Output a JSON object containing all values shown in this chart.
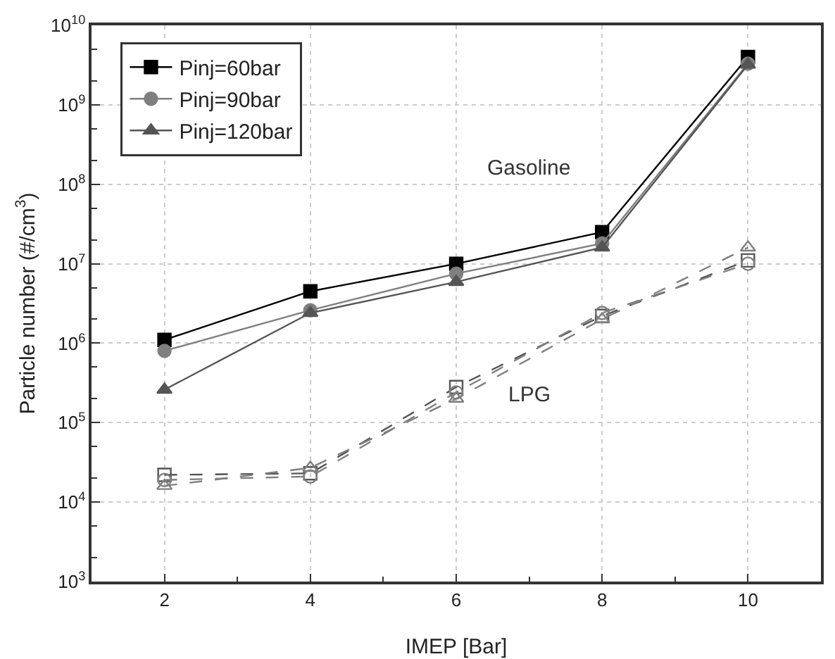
{
  "chart_data": {
    "type": "line",
    "xlabel": "IMEP [Bar]",
    "ylabel": "Particle number (#/cm$^{3}$)",
    "log": "y",
    "grid": true,
    "legend": "top left",
    "x": [
      2,
      4,
      6,
      8,
      10
    ],
    "xlim": [
      1,
      11
    ],
    "xticks": [
      2,
      4,
      6,
      8,
      10
    ],
    "ylim": [
      1000,
      10000000000
    ],
    "yticks": [
      {
        "value": 1000,
        "label": "10$^{3}$"
      },
      {
        "value": 10000,
        "label": "10$^{4}$"
      },
      {
        "value": 100000,
        "label": "10$^{5}$"
      },
      {
        "value": 1000000,
        "label": "10$^{6}$"
      },
      {
        "value": 10000000,
        "label": "10$^{7}$"
      },
      {
        "value": 100000000,
        "label": "10$^{8}$"
      },
      {
        "value": 1000000000,
        "label": "10$^{9}$"
      },
      {
        "value": 10000000000,
        "label": "10$^{10}$"
      }
    ],
    "series": [
      {
        "name": "Pinj=60bar",
        "color": "#000000",
        "marker": "square",
        "line_style": "solid",
        "values": [
          1100000,
          4500000,
          10000000,
          25000000,
          4000000000
        ]
      },
      {
        "name": "Pinj=90bar",
        "color": "#7f7f7f",
        "marker": "circle",
        "line_style": "solid",
        "values": [
          800000,
          2600000,
          7500000,
          18000000,
          3300000000
        ]
      },
      {
        "name": "Pinj=120bar",
        "color": "#555555",
        "marker": "triangle",
        "line_style": "solid",
        "values": [
          260000,
          2400000,
          5900000,
          16000000,
          3200000000
        ]
      },
      {
        "color": "#555555",
        "marker": "square",
        "line_style": "dashed",
        "values": [
          22000,
          23000,
          280000,
          2200000,
          11000000
        ]
      },
      {
        "color": "#7f7f7f",
        "marker": "circle",
        "line_style": "dashed",
        "values": [
          19000,
          21000,
          240000,
          2400000,
          10000000
        ]
      },
      {
        "color": "#7f7f7f",
        "marker": "triangle",
        "line_style": "dashed",
        "values": [
          16000,
          27000,
          200000,
          2000000,
          16000000
        ]
      }
    ],
    "annotations": [
      "Gasoline",
      "LPG"
    ]
  }
}
